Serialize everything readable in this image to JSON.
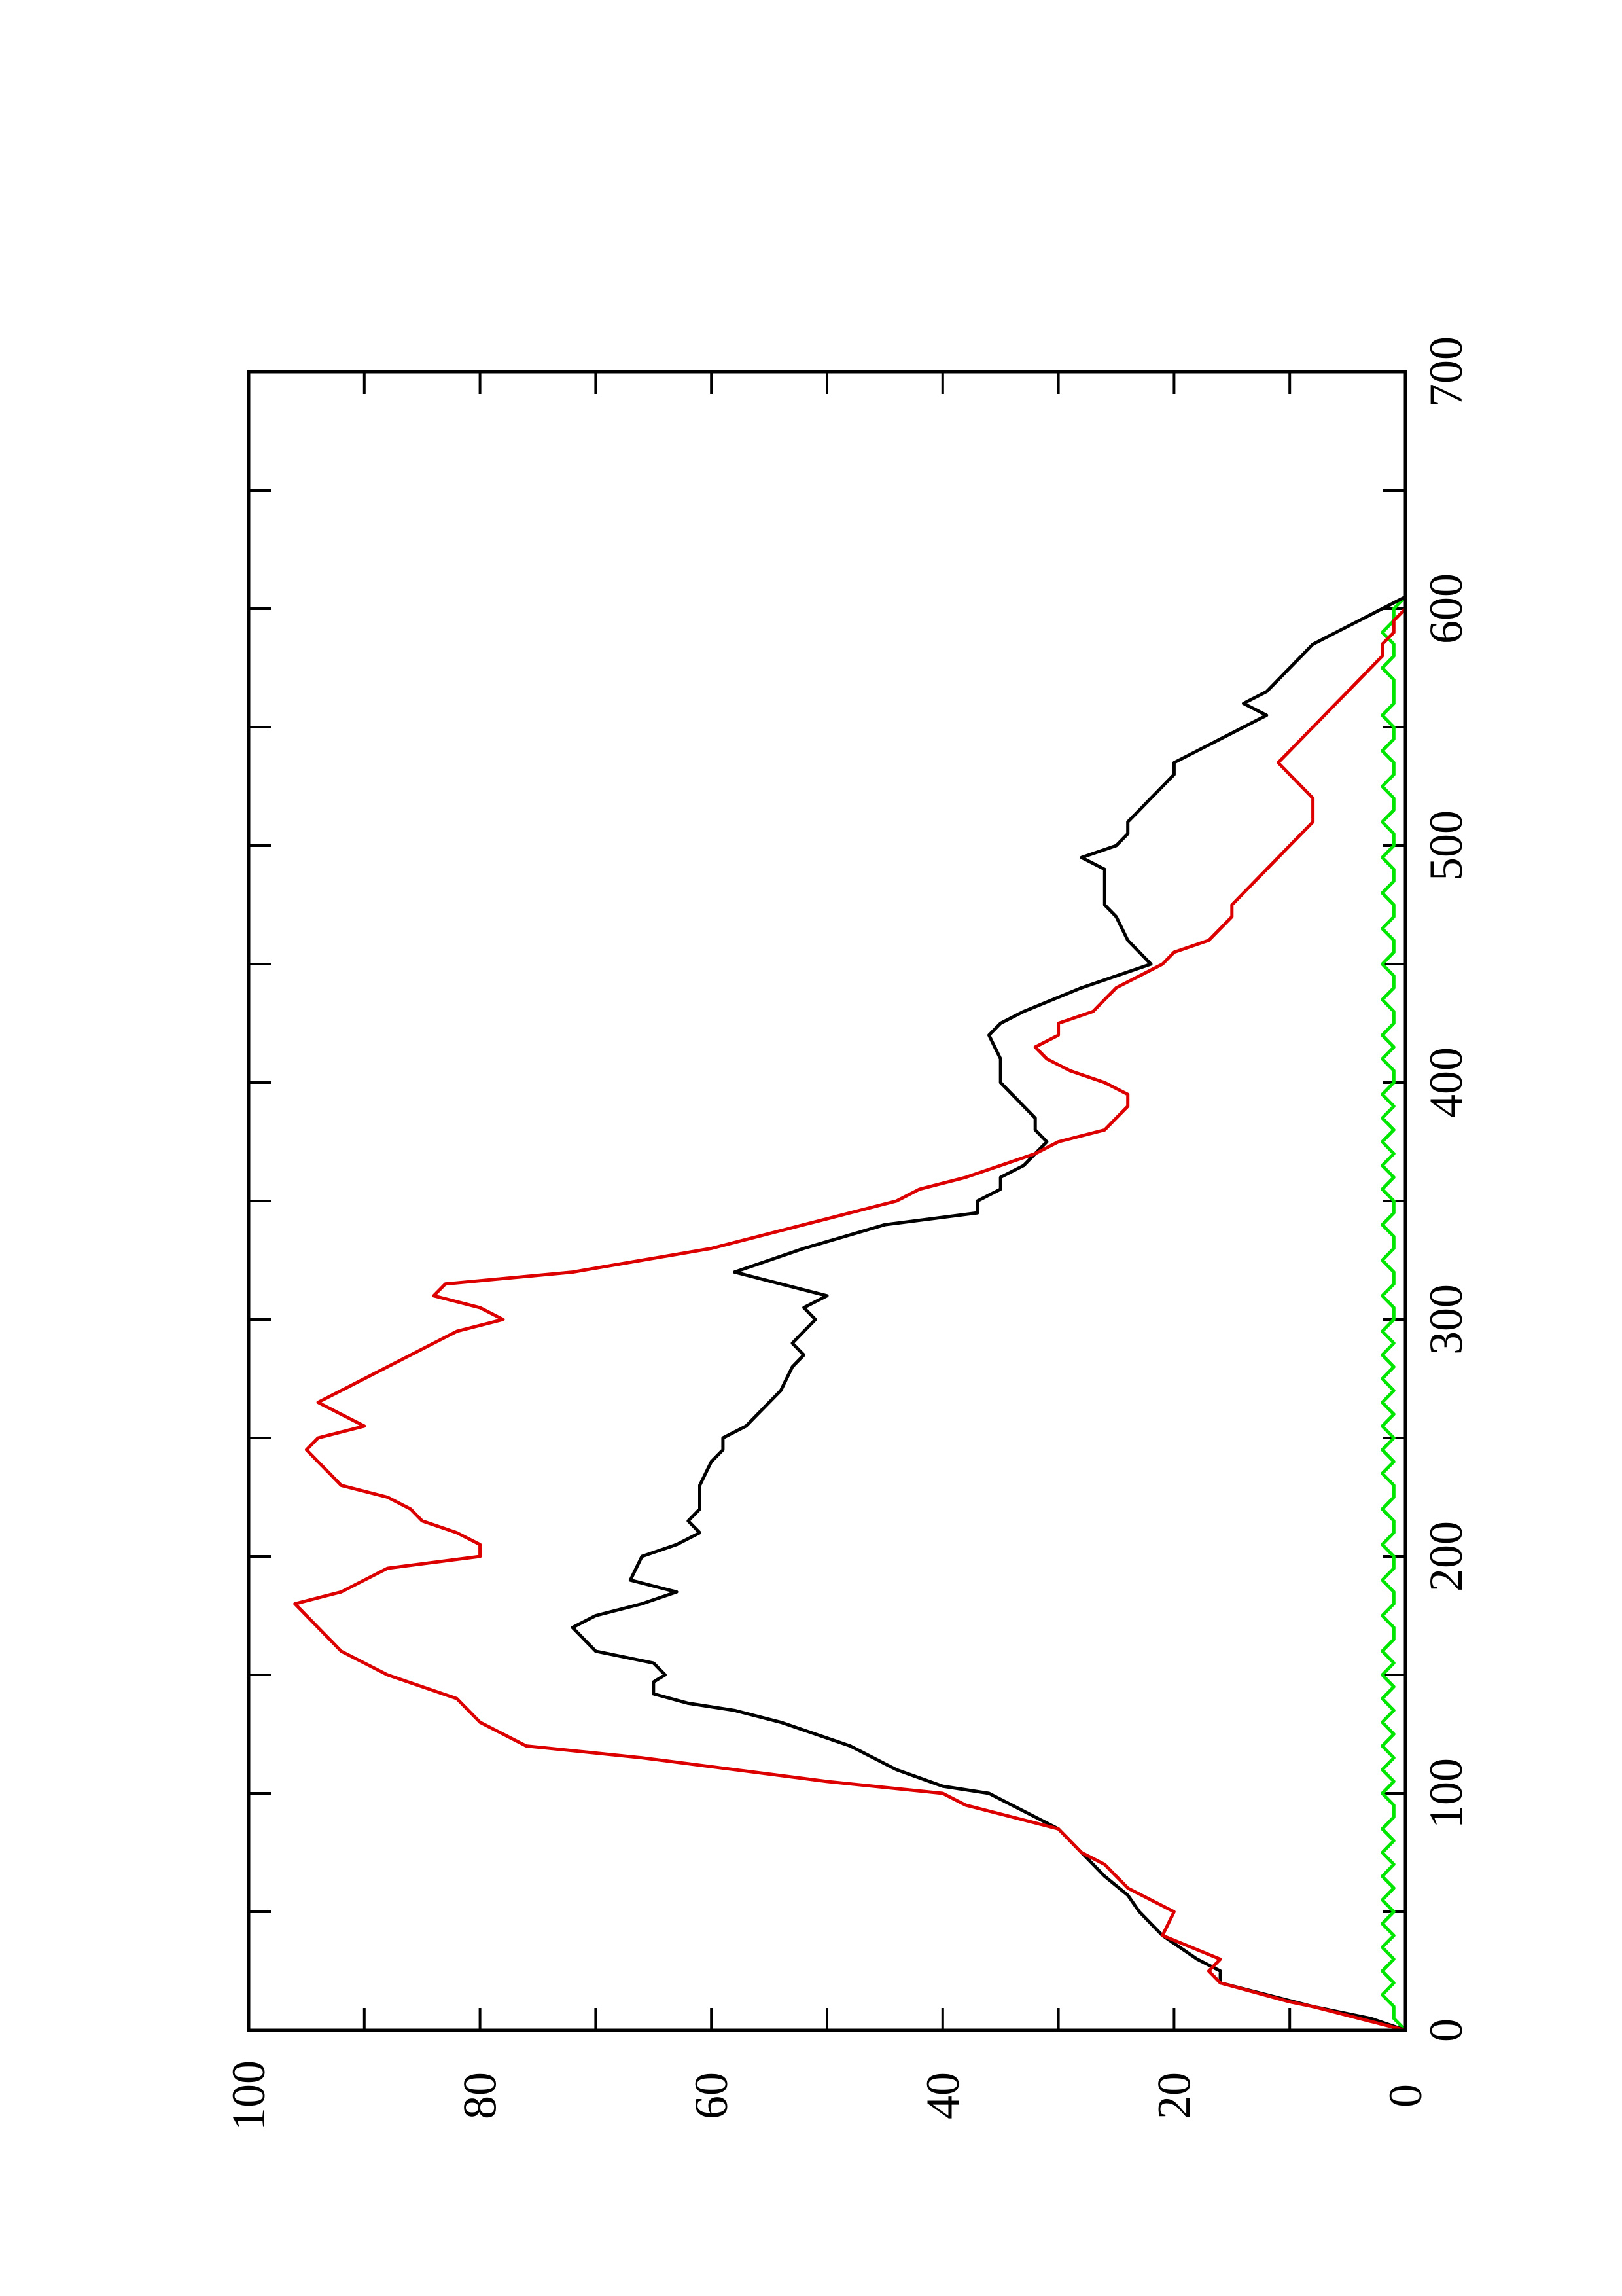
{
  "chart_data": {
    "type": "line",
    "orientation": "rotated-90-ccw",
    "title": "",
    "xlabel": "",
    "ylabel": "",
    "xlim": [
      0,
      700
    ],
    "ylim": [
      0,
      100
    ],
    "x_ticks": [
      0,
      100,
      200,
      300,
      400,
      500,
      600,
      700
    ],
    "y_ticks": [
      0,
      20,
      40,
      60,
      80,
      100
    ],
    "x_tick_labels": [
      "0",
      "100",
      "200",
      "300",
      "400",
      "500",
      "600",
      "700"
    ],
    "y_tick_labels": [
      "0",
      "20",
      "40",
      "60",
      "80",
      "100"
    ],
    "grid": false,
    "legend": "none",
    "series": [
      {
        "color": "#000000",
        "points": [
          [
            0,
            0
          ],
          [
            5,
            3
          ],
          [
            10,
            8
          ],
          [
            15,
            12
          ],
          [
            20,
            16
          ],
          [
            25,
            16
          ],
          [
            30,
            18
          ],
          [
            40,
            21
          ],
          [
            50,
            23
          ],
          [
            57,
            24
          ],
          [
            65,
            26
          ],
          [
            75,
            28
          ],
          [
            85,
            30
          ],
          [
            90,
            32
          ],
          [
            95,
            34
          ],
          [
            100,
            36
          ],
          [
            103,
            40
          ],
          [
            110,
            44
          ],
          [
            120,
            48
          ],
          [
            130,
            54
          ],
          [
            135,
            58
          ],
          [
            138,
            62
          ],
          [
            142,
            65
          ],
          [
            147,
            65
          ],
          [
            150,
            64
          ],
          [
            155,
            65
          ],
          [
            160,
            70
          ],
          [
            165,
            71
          ],
          [
            170,
            72
          ],
          [
            175,
            70
          ],
          [
            180,
            66
          ],
          [
            185,
            63
          ],
          [
            190,
            67
          ],
          [
            200,
            66
          ],
          [
            205,
            63
          ],
          [
            210,
            61
          ],
          [
            215,
            62
          ],
          [
            220,
            61
          ],
          [
            230,
            61
          ],
          [
            240,
            60
          ],
          [
            245,
            59
          ],
          [
            250,
            59
          ],
          [
            255,
            57
          ],
          [
            260,
            56
          ],
          [
            270,
            54
          ],
          [
            280,
            53
          ],
          [
            285,
            52
          ],
          [
            290,
            53
          ],
          [
            295,
            52
          ],
          [
            300,
            51
          ],
          [
            305,
            52
          ],
          [
            310,
            50
          ],
          [
            320,
            58
          ],
          [
            330,
            52
          ],
          [
            340,
            45
          ],
          [
            345,
            37
          ],
          [
            350,
            37
          ],
          [
            355,
            35
          ],
          [
            360,
            35
          ],
          [
            365,
            33
          ],
          [
            370,
            32
          ],
          [
            375,
            31
          ],
          [
            380,
            32
          ],
          [
            385,
            32
          ],
          [
            395,
            34
          ],
          [
            400,
            35
          ],
          [
            410,
            35
          ],
          [
            420,
            36
          ],
          [
            425,
            35
          ],
          [
            430,
            33
          ],
          [
            440,
            28
          ],
          [
            450,
            22
          ],
          [
            455,
            23
          ],
          [
            460,
            24
          ],
          [
            470,
            25
          ],
          [
            475,
            26
          ],
          [
            480,
            26
          ],
          [
            490,
            26
          ],
          [
            495,
            28
          ],
          [
            500,
            25
          ],
          [
            505,
            24
          ],
          [
            510,
            24
          ],
          [
            515,
            23
          ],
          [
            520,
            22
          ],
          [
            530,
            20
          ],
          [
            535,
            20
          ],
          [
            540,
            18
          ],
          [
            545,
            16
          ],
          [
            550,
            14
          ],
          [
            555,
            12
          ],
          [
            560,
            14
          ],
          [
            565,
            12
          ],
          [
            570,
            11
          ],
          [
            575,
            10
          ],
          [
            580,
            9
          ],
          [
            585,
            8
          ],
          [
            590,
            6
          ],
          [
            595,
            4
          ],
          [
            600,
            2
          ],
          [
            605,
            0
          ]
        ]
      },
      {
        "color": "#dd0000",
        "points": [
          [
            0,
            0
          ],
          [
            5,
            4
          ],
          [
            10,
            8
          ],
          [
            12,
            10
          ],
          [
            20,
            16
          ],
          [
            25,
            17
          ],
          [
            30,
            16
          ],
          [
            38,
            20
          ],
          [
            40,
            21
          ],
          [
            50,
            20
          ],
          [
            60,
            24
          ],
          [
            70,
            26
          ],
          [
            75,
            28
          ],
          [
            85,
            30
          ],
          [
            95,
            38
          ],
          [
            100,
            40
          ],
          [
            105,
            50
          ],
          [
            110,
            58
          ],
          [
            115,
            66
          ],
          [
            120,
            76
          ],
          [
            125,
            78
          ],
          [
            130,
            80
          ],
          [
            140,
            82
          ],
          [
            150,
            88
          ],
          [
            160,
            92
          ],
          [
            165,
            93
          ],
          [
            170,
            94
          ],
          [
            175,
            95
          ],
          [
            180,
            96
          ],
          [
            185,
            92
          ],
          [
            190,
            90
          ],
          [
            195,
            88
          ],
          [
            200,
            80
          ],
          [
            205,
            80
          ],
          [
            210,
            82
          ],
          [
            215,
            85
          ],
          [
            220,
            86
          ],
          [
            225,
            88
          ],
          [
            230,
            92
          ],
          [
            235,
            93
          ],
          [
            240,
            94
          ],
          [
            245,
            95
          ],
          [
            250,
            94
          ],
          [
            255,
            90
          ],
          [
            260,
            92
          ],
          [
            265,
            94
          ],
          [
            270,
            92
          ],
          [
            275,
            90
          ],
          [
            280,
            88
          ],
          [
            285,
            86
          ],
          [
            290,
            84
          ],
          [
            295,
            82
          ],
          [
            300,
            78
          ],
          [
            305,
            80
          ],
          [
            310,
            84
          ],
          [
            315,
            83
          ],
          [
            320,
            72
          ],
          [
            325,
            66
          ],
          [
            330,
            60
          ],
          [
            335,
            56
          ],
          [
            340,
            52
          ],
          [
            345,
            48
          ],
          [
            350,
            44
          ],
          [
            355,
            42
          ],
          [
            360,
            38
          ],
          [
            365,
            35
          ],
          [
            370,
            32
          ],
          [
            375,
            30
          ],
          [
            380,
            26
          ],
          [
            385,
            25
          ],
          [
            390,
            24
          ],
          [
            395,
            24
          ],
          [
            400,
            26
          ],
          [
            405,
            29
          ],
          [
            410,
            31
          ],
          [
            415,
            32
          ],
          [
            420,
            30
          ],
          [
            425,
            30
          ],
          [
            430,
            27
          ],
          [
            435,
            26
          ],
          [
            440,
            25
          ],
          [
            445,
            23
          ],
          [
            450,
            21
          ],
          [
            455,
            20
          ],
          [
            460,
            17
          ],
          [
            465,
            16
          ],
          [
            470,
            15
          ],
          [
            475,
            15
          ],
          [
            480,
            14
          ],
          [
            485,
            13
          ],
          [
            490,
            12
          ],
          [
            495,
            11
          ],
          [
            500,
            10
          ],
          [
            505,
            9
          ],
          [
            510,
            8
          ],
          [
            515,
            8
          ],
          [
            520,
            8
          ],
          [
            525,
            9
          ],
          [
            530,
            10
          ],
          [
            535,
            11
          ],
          [
            540,
            10
          ],
          [
            545,
            9
          ],
          [
            550,
            8
          ],
          [
            555,
            7
          ],
          [
            560,
            6
          ],
          [
            565,
            5
          ],
          [
            570,
            4
          ],
          [
            575,
            3
          ],
          [
            580,
            2
          ],
          [
            585,
            2
          ],
          [
            590,
            1
          ],
          [
            595,
            1
          ],
          [
            600,
            0
          ]
        ]
      },
      {
        "color": "#00e600",
        "points": [
          [
            0,
            0
          ],
          [
            5,
            1
          ],
          [
            10,
            1
          ],
          [
            15,
            2
          ],
          [
            20,
            1
          ],
          [
            25,
            2
          ],
          [
            30,
            1
          ],
          [
            35,
            2
          ],
          [
            40,
            1
          ],
          [
            45,
            2
          ],
          [
            50,
            1
          ],
          [
            55,
            2
          ],
          [
            60,
            1
          ],
          [
            65,
            2
          ],
          [
            70,
            1
          ],
          [
            75,
            2
          ],
          [
            80,
            1
          ],
          [
            85,
            2
          ],
          [
            90,
            1
          ],
          [
            95,
            1
          ],
          [
            100,
            2
          ],
          [
            105,
            1
          ],
          [
            110,
            2
          ],
          [
            115,
            1
          ],
          [
            120,
            2
          ],
          [
            125,
            1
          ],
          [
            130,
            2
          ],
          [
            135,
            1
          ],
          [
            140,
            2
          ],
          [
            145,
            1
          ],
          [
            150,
            2
          ],
          [
            155,
            1
          ],
          [
            160,
            2
          ],
          [
            165,
            1
          ],
          [
            170,
            1
          ],
          [
            175,
            2
          ],
          [
            180,
            1
          ],
          [
            185,
            1
          ],
          [
            190,
            2
          ],
          [
            195,
            1
          ],
          [
            200,
            1
          ],
          [
            205,
            2
          ],
          [
            210,
            1
          ],
          [
            215,
            1
          ],
          [
            220,
            2
          ],
          [
            225,
            1
          ],
          [
            230,
            1
          ],
          [
            235,
            2
          ],
          [
            240,
            1
          ],
          [
            245,
            2
          ],
          [
            250,
            1
          ],
          [
            255,
            2
          ],
          [
            260,
            1
          ],
          [
            265,
            2
          ],
          [
            270,
            1
          ],
          [
            275,
            2
          ],
          [
            280,
            1
          ],
          [
            285,
            2
          ],
          [
            290,
            1
          ],
          [
            295,
            2
          ],
          [
            300,
            1
          ],
          [
            305,
            1
          ],
          [
            310,
            2
          ],
          [
            315,
            1
          ],
          [
            320,
            1
          ],
          [
            325,
            2
          ],
          [
            330,
            1
          ],
          [
            335,
            1
          ],
          [
            340,
            2
          ],
          [
            345,
            1
          ],
          [
            350,
            1
          ],
          [
            355,
            2
          ],
          [
            360,
            1
          ],
          [
            365,
            2
          ],
          [
            370,
            1
          ],
          [
            375,
            2
          ],
          [
            380,
            1
          ],
          [
            385,
            2
          ],
          [
            390,
            1
          ],
          [
            395,
            2
          ],
          [
            400,
            1
          ],
          [
            405,
            1
          ],
          [
            410,
            2
          ],
          [
            415,
            1
          ],
          [
            420,
            2
          ],
          [
            425,
            1
          ],
          [
            430,
            1
          ],
          [
            435,
            2
          ],
          [
            440,
            1
          ],
          [
            445,
            1
          ],
          [
            450,
            2
          ],
          [
            455,
            1
          ],
          [
            460,
            1
          ],
          [
            465,
            2
          ],
          [
            470,
            1
          ],
          [
            475,
            1
          ],
          [
            480,
            2
          ],
          [
            485,
            1
          ],
          [
            490,
            1
          ],
          [
            495,
            2
          ],
          [
            500,
            1
          ],
          [
            505,
            1
          ],
          [
            510,
            2
          ],
          [
            515,
            1
          ],
          [
            520,
            1
          ],
          [
            525,
            2
          ],
          [
            530,
            1
          ],
          [
            535,
            1
          ],
          [
            540,
            2
          ],
          [
            545,
            1
          ],
          [
            550,
            1
          ],
          [
            555,
            2
          ],
          [
            560,
            1
          ],
          [
            565,
            1
          ],
          [
            570,
            1
          ],
          [
            575,
            2
          ],
          [
            580,
            1
          ],
          [
            585,
            1
          ],
          [
            590,
            2
          ],
          [
            595,
            1
          ],
          [
            600,
            1
          ],
          [
            605,
            0
          ]
        ]
      }
    ]
  }
}
